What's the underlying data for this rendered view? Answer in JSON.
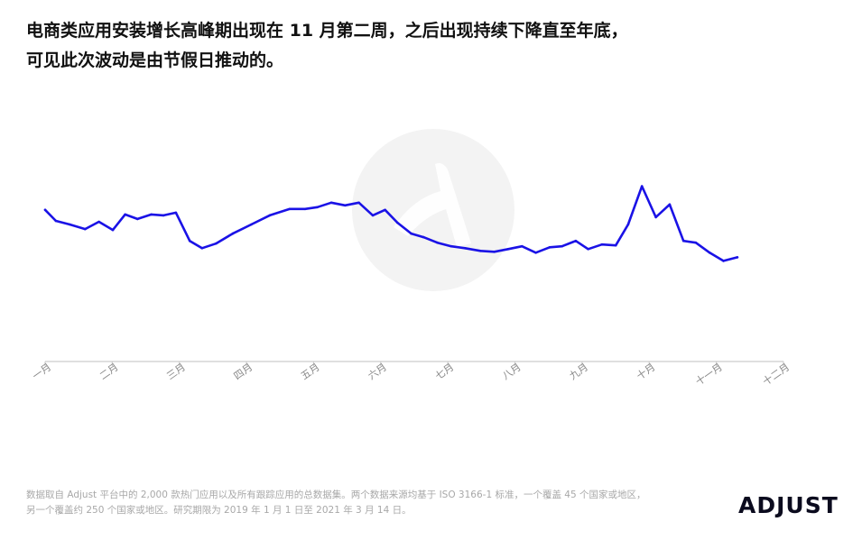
{
  "headline": {
    "line1": "电商类应用安装增长高峰期出现在 11 月第二周，之后出现持续下降直至年底，",
    "line2": "可见此次波动是由节假日推动的。"
  },
  "footnote": {
    "line1": "数据取自 Adjust 平台中的 2,000 款热门应用以及所有跟踪应用的总数据集。两个数据来源均基于 ISO 3166-1 标准，一个覆盖 45 个国家或地区，",
    "line2": "另一个覆盖约 250 个国家或地区。研究期限为 2019 年 1 月 1 日至 2021 年 3 月 14 日。"
  },
  "brand": {
    "name": "ADJUST"
  },
  "colors": {
    "line": "#1a12e6",
    "axis": "#cccccc",
    "tick_label": "#888888",
    "watermark": "#f3f3f3"
  },
  "icons": {
    "watermark": "adjust-logo-watermark-icon"
  },
  "chart_data": {
    "type": "line",
    "title": "",
    "xlabel": "",
    "ylabel": "",
    "y_axis_shown": false,
    "grid": false,
    "legend": "none",
    "month_labels": [
      "一月",
      "二月",
      "三月",
      "四月",
      "五月",
      "六月",
      "七月",
      "八月",
      "九月",
      "十月",
      "十一月",
      "十二月"
    ],
    "x_range": [
      0,
      48
    ],
    "ylim": [
      0,
      100
    ],
    "series": [
      {
        "values": [
          [
            0,
            58
          ],
          [
            0.7,
            52
          ],
          [
            1.6,
            50
          ],
          [
            2.6,
            47.5
          ],
          [
            3.5,
            51.5
          ],
          [
            4.4,
            47
          ],
          [
            5.2,
            55.5
          ],
          [
            6.0,
            53
          ],
          [
            6.9,
            55.5
          ],
          [
            7.7,
            55
          ],
          [
            8.5,
            56.5
          ],
          [
            9.4,
            41
          ],
          [
            10.2,
            37
          ],
          [
            11.1,
            39.5
          ],
          [
            12.2,
            45
          ],
          [
            13.4,
            50
          ],
          [
            14.6,
            55
          ],
          [
            15.9,
            58.5
          ],
          [
            16.9,
            58.5
          ],
          [
            17.7,
            59.5
          ],
          [
            18.6,
            62
          ],
          [
            19.5,
            60.5
          ],
          [
            20.4,
            62
          ],
          [
            21.3,
            55
          ],
          [
            22.1,
            58
          ],
          [
            22.9,
            51
          ],
          [
            23.8,
            45
          ],
          [
            24.6,
            43
          ],
          [
            25.5,
            40
          ],
          [
            26.4,
            38
          ],
          [
            27.3,
            37
          ],
          [
            28.3,
            35.5
          ],
          [
            29.2,
            35
          ],
          [
            30.1,
            36.5
          ],
          [
            31.0,
            38
          ],
          [
            31.9,
            34.5
          ],
          [
            32.8,
            37.5
          ],
          [
            33.6,
            38
          ],
          [
            34.5,
            41
          ],
          [
            35.3,
            36.5
          ],
          [
            36.2,
            39
          ],
          [
            37.1,
            38.5
          ],
          [
            37.9,
            50
          ],
          [
            38.8,
            71
          ],
          [
            39.7,
            54
          ],
          [
            40.6,
            61
          ],
          [
            41.5,
            41
          ],
          [
            42.3,
            40
          ],
          [
            43.2,
            34.5
          ],
          [
            44.1,
            30
          ],
          [
            45.0,
            32
          ]
        ]
      }
    ]
  }
}
